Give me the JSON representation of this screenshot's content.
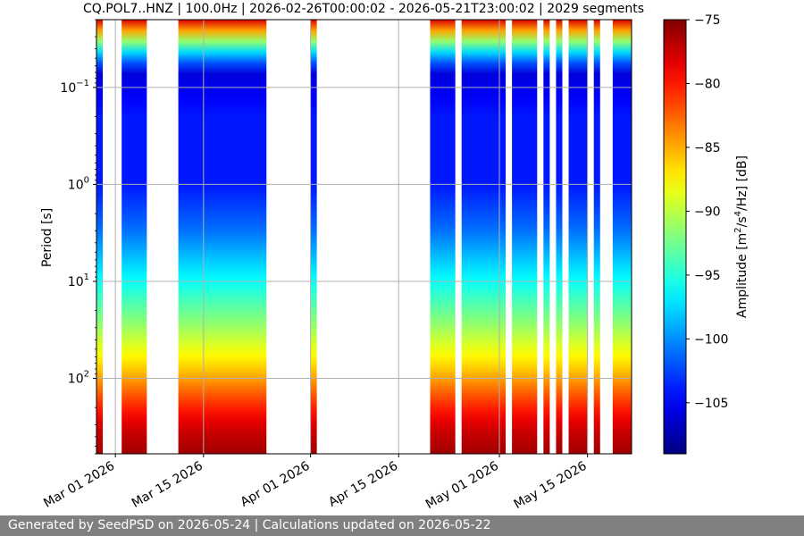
{
  "chart_data": {
    "type": "heatmap",
    "title": "CQ.POL7..HNZ | 100.0Hz | 2026-02-26T00:00:02 - 2026-05-21T23:00:02 | 2029 segments",
    "xlabel": "",
    "ylabel": "Period [s]",
    "colorbar_label": "Amplitude [m²/s⁴/Hz] [dB]",
    "colorbar_label_parts": {
      "prefix": "Amplitude [m",
      "sup1": "2",
      "mid1": "/s",
      "sup2": "4",
      "suffix": "/Hz] [dB]"
    },
    "colormap": "jet",
    "y_scale": "log",
    "y_inverted": true,
    "y_range": [
      0.02,
      600
    ],
    "y_ticks": [
      {
        "value": 0.1,
        "base": "10",
        "exp": "−1"
      },
      {
        "value": 1,
        "base": "10",
        "exp": "0"
      },
      {
        "value": 10,
        "base": "10",
        "exp": "1"
      },
      {
        "value": 100,
        "base": "10",
        "exp": "2"
      }
    ],
    "x_range": [
      "2026-02-26",
      "2026-05-22"
    ],
    "x_ticks": [
      {
        "date": "2026-03-01",
        "label": "Mar 01 2026"
      },
      {
        "date": "2026-03-15",
        "label": "Mar 15 2026"
      },
      {
        "date": "2026-04-01",
        "label": "Apr 01 2026"
      },
      {
        "date": "2026-04-15",
        "label": "Apr 15 2026"
      },
      {
        "date": "2026-05-01",
        "label": "May 01 2026"
      },
      {
        "date": "2026-05-15",
        "label": "May 15 2026"
      }
    ],
    "grid": true,
    "color_range_db": [
      -109,
      -75
    ],
    "colorbar_ticks": [
      -75,
      -80,
      -85,
      -90,
      -95,
      -100,
      -105
    ],
    "data_coverage": [
      {
        "start": "2026-02-26",
        "end": "2026-02-27"
      },
      {
        "start": "2026-03-02",
        "end": "2026-03-06"
      },
      {
        "start": "2026-03-11",
        "end": "2026-03-25"
      },
      {
        "start": "2026-04-01",
        "end": "2026-04-02"
      },
      {
        "start": "2026-04-20",
        "end": "2026-04-24"
      },
      {
        "start": "2026-04-25",
        "end": "2026-05-02"
      },
      {
        "start": "2026-05-03",
        "end": "2026-05-07"
      },
      {
        "start": "2026-05-08",
        "end": "2026-05-09"
      },
      {
        "start": "2026-05-10",
        "end": "2026-05-11"
      },
      {
        "start": "2026-05-12",
        "end": "2026-05-15"
      },
      {
        "start": "2026-05-16",
        "end": "2026-05-17"
      },
      {
        "start": "2026-05-19",
        "end": "2026-05-22"
      }
    ],
    "spectrum_profile": [
      {
        "period": 0.02,
        "db": -78
      },
      {
        "period": 0.04,
        "db": -96
      },
      {
        "period": 0.07,
        "db": -106
      },
      {
        "period": 0.2,
        "db": -104
      },
      {
        "period": 1,
        "db": -104
      },
      {
        "period": 3,
        "db": -101
      },
      {
        "period": 10,
        "db": -96
      },
      {
        "period": 30,
        "db": -91
      },
      {
        "period": 80,
        "db": -86
      },
      {
        "period": 150,
        "db": -82
      },
      {
        "period": 300,
        "db": -78
      },
      {
        "period": 600,
        "db": -76
      }
    ]
  },
  "footer": {
    "text": "Generated by SeedPSD on 2026-05-24 | Calculations updated on 2026-05-22"
  }
}
